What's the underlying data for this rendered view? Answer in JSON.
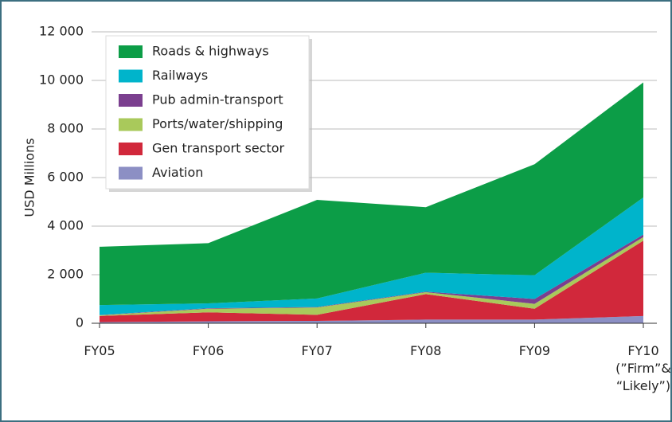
{
  "chart_data": {
    "type": "area",
    "y_label": "USD Millions",
    "categories": [
      "FY05",
      "FY06",
      "FY07",
      "FY08",
      "FY09",
      "FY10\n(”Firm”&\n“Likely”)"
    ],
    "series": [
      {
        "name": "Roads & highways",
        "color": "#0c9d47",
        "values": [
          2400,
          2480,
          4060,
          2700,
          4570,
          4740
        ]
      },
      {
        "name": "Railways",
        "color": "#00b4cb",
        "values": [
          410,
          200,
          350,
          780,
          980,
          1530
        ]
      },
      {
        "name": "Pub admin-transport",
        "color": "#7b3f8f",
        "values": [
          10,
          20,
          20,
          20,
          200,
          100
        ]
      },
      {
        "name": "Ports/water/shipping",
        "color": "#a9c95b",
        "values": [
          30,
          150,
          300,
          80,
          200,
          150
        ]
      },
      {
        "name": "Gen transport sector",
        "color": "#d1283b",
        "values": [
          250,
          370,
          250,
          1050,
          450,
          3100
        ]
      },
      {
        "name": "Aviation",
        "color": "#8c8fc4",
        "values": [
          50,
          80,
          100,
          150,
          150,
          300
        ]
      }
    ],
    "stacked": true,
    "ylim": [
      0,
      12000
    ],
    "yticks": [
      0,
      {
        "value": 2000,
        "label": "2 000"
      },
      {
        "value": 4000,
        "label": "4 000"
      },
      {
        "value": 6000,
        "label": "6 000"
      },
      {
        "value": 8000,
        "label": "8 000"
      },
      {
        "value": 10000,
        "label": "10 000"
      },
      {
        "value": 12000,
        "label": "12 000"
      }
    ],
    "grid": true,
    "legend": "upper left"
  }
}
